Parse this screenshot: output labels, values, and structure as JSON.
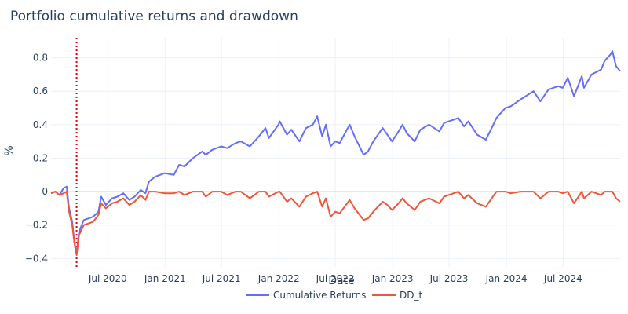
{
  "chart_data": {
    "type": "line",
    "title": "Portfolio cumulative returns and drawdown",
    "xlabel": "Date",
    "ylabel": "%",
    "xlim": [
      "2020-01-01",
      "2024-12-31"
    ],
    "ylim": [
      -0.45,
      0.92
    ],
    "grid": true,
    "legend": "bottom-center",
    "x_ticks": [
      {
        "date": "2020-07-01",
        "label": "Jul 2020"
      },
      {
        "date": "2021-01-01",
        "label": "Jan 2021"
      },
      {
        "date": "2021-07-01",
        "label": "Jul 2021"
      },
      {
        "date": "2022-01-01",
        "label": "Jan 2022"
      },
      {
        "date": "2022-07-01",
        "label": "Jul 2022"
      },
      {
        "date": "2023-01-01",
        "label": "Jan 2023"
      },
      {
        "date": "2023-07-01",
        "label": "Jul 2023"
      },
      {
        "date": "2024-01-01",
        "label": "Jan 2024"
      },
      {
        "date": "2024-07-01",
        "label": "Jul 2024"
      }
    ],
    "y_ticks": [
      {
        "value": -0.4,
        "label": "−0.4"
      },
      {
        "value": -0.2,
        "label": "−0.2"
      },
      {
        "value": 0,
        "label": "0"
      },
      {
        "value": 0.2,
        "label": "0.2"
      },
      {
        "value": 0.4,
        "label": "0.4"
      },
      {
        "value": 0.6,
        "label": "0.6"
      },
      {
        "value": 0.8,
        "label": "0.8"
      }
    ],
    "annotations": [
      {
        "type": "vertical-dotted-line",
        "x": "2020-03-23",
        "color": "#e8000b"
      }
    ],
    "series": [
      {
        "name": "Cumulative Returns",
        "color": "#636efa",
        "points": [
          [
            "2020-01-01",
            -0.01
          ],
          [
            "2020-01-15",
            0.0
          ],
          [
            "2020-01-28",
            -0.02
          ],
          [
            "2020-02-10",
            0.02
          ],
          [
            "2020-02-20",
            0.03
          ],
          [
            "2020-02-28",
            -0.1
          ],
          [
            "2020-03-09",
            -0.18
          ],
          [
            "2020-03-16",
            -0.3
          ],
          [
            "2020-03-23",
            -0.37
          ],
          [
            "2020-03-31",
            -0.24
          ],
          [
            "2020-04-15",
            -0.17
          ],
          [
            "2020-05-01",
            -0.16
          ],
          [
            "2020-05-15",
            -0.15
          ],
          [
            "2020-06-01",
            -0.12
          ],
          [
            "2020-06-10",
            -0.03
          ],
          [
            "2020-06-25",
            -0.08
          ],
          [
            "2020-07-15",
            -0.04
          ],
          [
            "2020-08-01",
            -0.03
          ],
          [
            "2020-08-20",
            -0.01
          ],
          [
            "2020-09-08",
            -0.05
          ],
          [
            "2020-09-25",
            -0.03
          ],
          [
            "2020-10-15",
            0.01
          ],
          [
            "2020-10-30",
            -0.01
          ],
          [
            "2020-11-10",
            0.06
          ],
          [
            "2020-12-01",
            0.09
          ],
          [
            "2020-12-31",
            0.11
          ],
          [
            "2021-01-29",
            0.1
          ],
          [
            "2021-02-15",
            0.16
          ],
          [
            "2021-03-04",
            0.15
          ],
          [
            "2021-03-31",
            0.2
          ],
          [
            "2021-04-30",
            0.24
          ],
          [
            "2021-05-12",
            0.22
          ],
          [
            "2021-06-01",
            0.25
          ],
          [
            "2021-06-30",
            0.27
          ],
          [
            "2021-07-19",
            0.26
          ],
          [
            "2021-08-15",
            0.29
          ],
          [
            "2021-09-01",
            0.3
          ],
          [
            "2021-09-30",
            0.27
          ],
          [
            "2021-10-29",
            0.33
          ],
          [
            "2021-11-19",
            0.38
          ],
          [
            "2021-11-30",
            0.32
          ],
          [
            "2021-12-31",
            0.4
          ],
          [
            "2022-01-04",
            0.42
          ],
          [
            "2022-01-27",
            0.34
          ],
          [
            "2022-02-10",
            0.37
          ],
          [
            "2022-03-08",
            0.3
          ],
          [
            "2022-03-29",
            0.38
          ],
          [
            "2022-04-20",
            0.4
          ],
          [
            "2022-05-04",
            0.45
          ],
          [
            "2022-05-20",
            0.33
          ],
          [
            "2022-06-01",
            0.4
          ],
          [
            "2022-06-16",
            0.27
          ],
          [
            "2022-07-01",
            0.3
          ],
          [
            "2022-07-15",
            0.29
          ],
          [
            "2022-08-16",
            0.4
          ],
          [
            "2022-09-01",
            0.33
          ],
          [
            "2022-09-30",
            0.22
          ],
          [
            "2022-10-14",
            0.24
          ],
          [
            "2022-10-31",
            0.3
          ],
          [
            "2022-11-30",
            0.38
          ],
          [
            "2022-12-15",
            0.34
          ],
          [
            "2022-12-30",
            0.3
          ],
          [
            "2023-01-20",
            0.36
          ],
          [
            "2023-02-02",
            0.4
          ],
          [
            "2023-02-15",
            0.35
          ],
          [
            "2023-03-13",
            0.3
          ],
          [
            "2023-03-31",
            0.37
          ],
          [
            "2023-04-28",
            0.4
          ],
          [
            "2023-05-31",
            0.36
          ],
          [
            "2023-06-15",
            0.41
          ],
          [
            "2023-07-31",
            0.44
          ],
          [
            "2023-08-18",
            0.39
          ],
          [
            "2023-09-01",
            0.42
          ],
          [
            "2023-09-29",
            0.34
          ],
          [
            "2023-10-27",
            0.31
          ],
          [
            "2023-11-15",
            0.38
          ],
          [
            "2023-11-30",
            0.44
          ],
          [
            "2023-12-29",
            0.5
          ],
          [
            "2024-01-15",
            0.51
          ],
          [
            "2024-02-15",
            0.55
          ],
          [
            "2024-03-28",
            0.6
          ],
          [
            "2024-04-19",
            0.54
          ],
          [
            "2024-05-15",
            0.61
          ],
          [
            "2024-06-15",
            0.63
          ],
          [
            "2024-06-30",
            0.62
          ],
          [
            "2024-07-16",
            0.68
          ],
          [
            "2024-08-05",
            0.57
          ],
          [
            "2024-08-30",
            0.69
          ],
          [
            "2024-09-06",
            0.62
          ],
          [
            "2024-09-30",
            0.7
          ],
          [
            "2024-10-31",
            0.73
          ],
          [
            "2024-11-11",
            0.78
          ],
          [
            "2024-11-30",
            0.82
          ],
          [
            "2024-12-06",
            0.84
          ],
          [
            "2024-12-18",
            0.75
          ],
          [
            "2024-12-31",
            0.72
          ]
        ]
      },
      {
        "name": "DD_t",
        "color": "#ef553b",
        "points": [
          [
            "2020-01-01",
            -0.01
          ],
          [
            "2020-01-15",
            0.0
          ],
          [
            "2020-01-28",
            -0.02
          ],
          [
            "2020-02-10",
            -0.01
          ],
          [
            "2020-02-20",
            0.0
          ],
          [
            "2020-02-28",
            -0.12
          ],
          [
            "2020-03-09",
            -0.2
          ],
          [
            "2020-03-16",
            -0.31
          ],
          [
            "2020-03-23",
            -0.38
          ],
          [
            "2020-03-31",
            -0.26
          ],
          [
            "2020-04-15",
            -0.2
          ],
          [
            "2020-05-01",
            -0.19
          ],
          [
            "2020-05-15",
            -0.18
          ],
          [
            "2020-06-01",
            -0.14
          ],
          [
            "2020-06-10",
            -0.07
          ],
          [
            "2020-06-25",
            -0.1
          ],
          [
            "2020-07-15",
            -0.07
          ],
          [
            "2020-08-01",
            -0.06
          ],
          [
            "2020-08-20",
            -0.04
          ],
          [
            "2020-09-08",
            -0.08
          ],
          [
            "2020-09-25",
            -0.06
          ],
          [
            "2020-10-15",
            -0.02
          ],
          [
            "2020-10-30",
            -0.05
          ],
          [
            "2020-11-10",
            0.0
          ],
          [
            "2020-12-01",
            0.0
          ],
          [
            "2020-12-31",
            -0.01
          ],
          [
            "2021-01-29",
            -0.01
          ],
          [
            "2021-02-15",
            0.0
          ],
          [
            "2021-03-04",
            -0.02
          ],
          [
            "2021-03-31",
            0.0
          ],
          [
            "2021-04-30",
            0.0
          ],
          [
            "2021-05-12",
            -0.03
          ],
          [
            "2021-06-01",
            0.0
          ],
          [
            "2021-06-30",
            0.0
          ],
          [
            "2021-07-19",
            -0.02
          ],
          [
            "2021-08-15",
            0.0
          ],
          [
            "2021-09-01",
            0.0
          ],
          [
            "2021-09-30",
            -0.04
          ],
          [
            "2021-10-29",
            0.0
          ],
          [
            "2021-11-19",
            0.0
          ],
          [
            "2021-11-30",
            -0.03
          ],
          [
            "2021-12-31",
            0.0
          ],
          [
            "2022-01-04",
            0.0
          ],
          [
            "2022-01-27",
            -0.06
          ],
          [
            "2022-02-10",
            -0.04
          ],
          [
            "2022-03-08",
            -0.09
          ],
          [
            "2022-03-29",
            -0.03
          ],
          [
            "2022-04-20",
            -0.01
          ],
          [
            "2022-05-04",
            0.0
          ],
          [
            "2022-05-20",
            -0.09
          ],
          [
            "2022-06-01",
            -0.04
          ],
          [
            "2022-06-16",
            -0.15
          ],
          [
            "2022-07-01",
            -0.12
          ],
          [
            "2022-07-15",
            -0.13
          ],
          [
            "2022-08-16",
            -0.05
          ],
          [
            "2022-09-01",
            -0.1
          ],
          [
            "2022-09-30",
            -0.17
          ],
          [
            "2022-10-14",
            -0.16
          ],
          [
            "2022-10-31",
            -0.12
          ],
          [
            "2022-11-30",
            -0.06
          ],
          [
            "2022-12-15",
            -0.08
          ],
          [
            "2022-12-30",
            -0.11
          ],
          [
            "2023-01-20",
            -0.07
          ],
          [
            "2023-02-02",
            -0.04
          ],
          [
            "2023-02-15",
            -0.07
          ],
          [
            "2023-03-13",
            -0.11
          ],
          [
            "2023-03-31",
            -0.06
          ],
          [
            "2023-04-28",
            -0.04
          ],
          [
            "2023-05-31",
            -0.07
          ],
          [
            "2023-06-15",
            -0.03
          ],
          [
            "2023-07-31",
            0.0
          ],
          [
            "2023-08-18",
            -0.04
          ],
          [
            "2023-09-01",
            -0.02
          ],
          [
            "2023-09-29",
            -0.07
          ],
          [
            "2023-10-27",
            -0.09
          ],
          [
            "2023-11-15",
            -0.04
          ],
          [
            "2023-11-30",
            0.0
          ],
          [
            "2023-12-29",
            0.0
          ],
          [
            "2024-01-15",
            -0.01
          ],
          [
            "2024-02-15",
            0.0
          ],
          [
            "2024-03-28",
            0.0
          ],
          [
            "2024-04-19",
            -0.04
          ],
          [
            "2024-05-15",
            0.0
          ],
          [
            "2024-06-15",
            0.0
          ],
          [
            "2024-06-30",
            -0.01
          ],
          [
            "2024-07-16",
            0.0
          ],
          [
            "2024-08-05",
            -0.07
          ],
          [
            "2024-08-30",
            0.0
          ],
          [
            "2024-09-06",
            -0.04
          ],
          [
            "2024-09-30",
            0.0
          ],
          [
            "2024-10-31",
            -0.02
          ],
          [
            "2024-11-11",
            0.0
          ],
          [
            "2024-11-30",
            0.0
          ],
          [
            "2024-12-06",
            0.0
          ],
          [
            "2024-12-18",
            -0.04
          ],
          [
            "2024-12-31",
            -0.06
          ]
        ]
      }
    ]
  }
}
